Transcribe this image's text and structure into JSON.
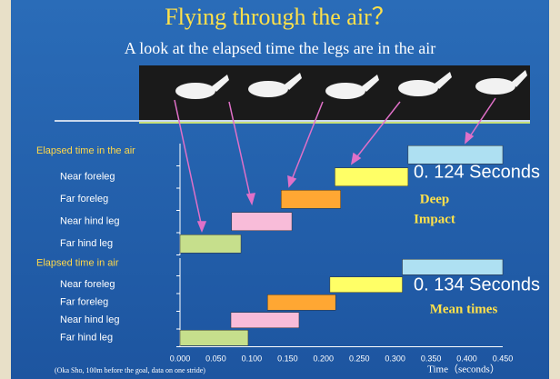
{
  "title": "Flying through the air？",
  "subtitle": "A look at the elapsed time the legs are in the air",
  "note": "(Oka Sho, 100m before the goal,  data on one stride)",
  "chart_data": [
    {
      "type": "gantt",
      "categories": [
        "Elapsed time in the air",
        "Near foreleg",
        "Far foreleg",
        "Near hind leg",
        "Far hind leg"
      ],
      "start": [
        0.318,
        0.216,
        0.141,
        0.072,
        0.0
      ],
      "end": [
        0.45,
        0.318,
        0.224,
        0.156,
        0.085
      ],
      "colors": [
        "#aee0f2",
        "#ffff66",
        "#ffa733",
        "#f8bcd9",
        "#c6df8c"
      ],
      "xlim": [
        0,
        0.45
      ],
      "annotations": [
        "0. 124 Seconds",
        "Deep",
        "Impact"
      ]
    },
    {
      "type": "gantt",
      "categories": [
        "Elapsed time in air",
        "Near foreleg",
        "Far foreleg",
        "Near hind leg",
        "Far hind leg"
      ],
      "start": [
        0.31,
        0.209,
        0.122,
        0.071,
        0.0
      ],
      "end": [
        0.45,
        0.31,
        0.217,
        0.166,
        0.095
      ],
      "colors": [
        "#aee0f2",
        "#ffff66",
        "#ffa733",
        "#f8bcd9",
        "#c6df8c"
      ],
      "xlim": [
        0,
        0.45
      ],
      "xticks": [
        {
          "value": 0,
          "label": "0.000"
        },
        {
          "value": 0.05,
          "label": "0.050"
        },
        {
          "value": 0.1,
          "label": "0.100"
        },
        {
          "value": 0.15,
          "label": "0.150"
        },
        {
          "value": 0.2,
          "label": "0.200"
        },
        {
          "value": 0.25,
          "label": "0.250"
        },
        {
          "value": 0.3,
          "label": "0.300"
        },
        {
          "value": 0.35,
          "label": "0.350"
        },
        {
          "value": 0.4,
          "label": "0.400"
        },
        {
          "value": 0.45,
          "label": "0.450"
        }
      ],
      "xlabel": "Time（seconds）",
      "annotations": [
        "0. 134 Seconds",
        "Mean times"
      ]
    }
  ]
}
